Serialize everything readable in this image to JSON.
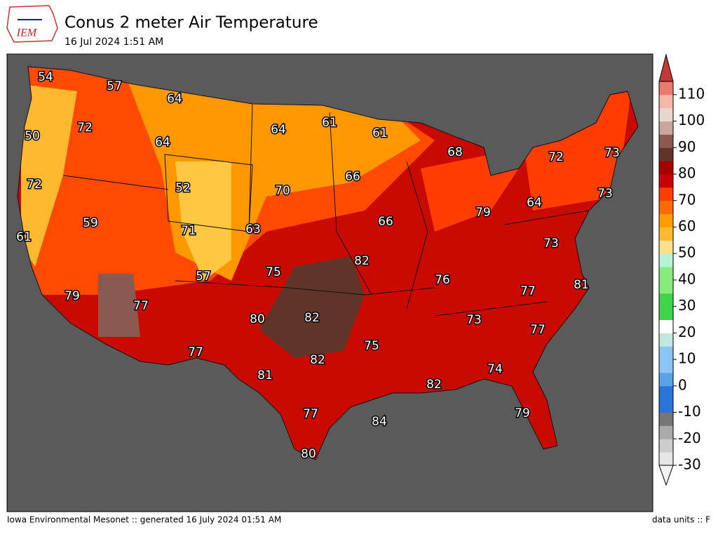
{
  "header": {
    "logo": "IEM",
    "title": "Conus 2 meter Air Temperature",
    "subtitle": "16 Jul 2024 1:51 AM"
  },
  "footer": {
    "left": "Iowa Environmental Mesonet :: generated 16 July 2024 01:51 AM",
    "right": "data units :: F"
  },
  "map": {
    "labels": [
      54,
      57,
      64,
      72,
      50,
      64,
      64,
      61,
      61,
      68,
      72,
      73,
      72,
      52,
      70,
      66,
      73,
      64,
      59,
      71,
      63,
      66,
      79,
      61,
      73,
      75,
      82,
      57,
      76,
      77,
      81,
      79,
      77,
      80,
      82,
      73,
      77,
      75,
      77,
      82,
      74,
      81,
      82,
      77,
      79,
      84,
      80
    ]
  },
  "colorbar": {
    "range": [
      -30,
      115
    ],
    "ticks": [
      -30,
      -20,
      -10,
      0,
      10,
      20,
      30,
      40,
      50,
      60,
      70,
      80,
      90,
      100,
      110
    ],
    "colors": [
      "#e6e6e6",
      "#cccccc",
      "#aaaaaa",
      "#777777",
      "#2a75d9",
      "#2a75d9",
      "#5aa3ea",
      "#8cc4f5",
      "#8cc4f5",
      "#bfe9e0",
      "#ffffff",
      "#3fd44a",
      "#3fd44a",
      "#88eb80",
      "#88eb80",
      "#b6f2d8",
      "#fde08a",
      "#ffb830",
      "#ff9d00",
      "#ff6a00",
      "#ff3d00",
      "#cc0000",
      "#a30000",
      "#5e3528",
      "#8a5a4f",
      "#c9a59a",
      "#e8d8cc",
      "#f5b8a8",
      "#e87a6e"
    ],
    "low_color": "#f2f2f2",
    "high_color": "#c03a3a"
  }
}
